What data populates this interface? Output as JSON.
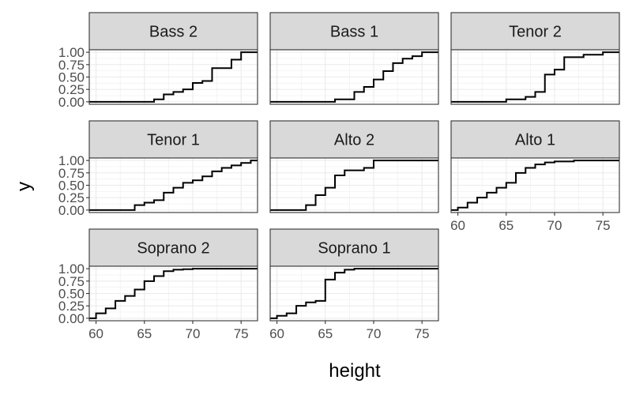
{
  "chart_data": {
    "type": "line",
    "subtype": "step-ecdf",
    "xlabel": "height",
    "ylabel": "y",
    "xlim": [
      59.3,
      76.7
    ],
    "ylim": [
      -0.05,
      1.05
    ],
    "x_ticks": [
      "60",
      "65",
      "70",
      "75"
    ],
    "x_tick_values": [
      60,
      65,
      70,
      75
    ],
    "y_ticks": [
      "0.00",
      "0.25",
      "0.50",
      "0.75",
      "1.00"
    ],
    "y_tick_values": [
      0,
      0.25,
      0.5,
      0.75,
      1
    ],
    "grid": true,
    "theme": "bw",
    "panels": [
      {
        "name": "Bass 2",
        "x": [
          59.3,
          66,
          67,
          68,
          69,
          70,
          71,
          72,
          74,
          75,
          76.7
        ],
        "y": [
          0,
          0.05,
          0.15,
          0.2,
          0.25,
          0.38,
          0.42,
          0.68,
          0.85,
          1.0,
          1.0
        ]
      },
      {
        "name": "Bass 1",
        "x": [
          59.3,
          66,
          68,
          69,
          70,
          71,
          72,
          73,
          74,
          75,
          76.7
        ],
        "y": [
          0,
          0.05,
          0.2,
          0.3,
          0.45,
          0.62,
          0.78,
          0.87,
          0.92,
          1.0,
          1.0
        ]
      },
      {
        "name": "Tenor 2",
        "x": [
          59.3,
          65,
          67,
          68,
          69,
          70,
          71,
          73,
          75,
          76.7
        ],
        "y": [
          0,
          0.05,
          0.1,
          0.2,
          0.55,
          0.65,
          0.9,
          0.95,
          1.0,
          1.0
        ]
      },
      {
        "name": "Tenor 1",
        "x": [
          59.3,
          64,
          65,
          66,
          67,
          68,
          69,
          70,
          71,
          72,
          73,
          74,
          75,
          76,
          76.7
        ],
        "y": [
          0,
          0.1,
          0.15,
          0.2,
          0.35,
          0.45,
          0.55,
          0.6,
          0.68,
          0.78,
          0.85,
          0.9,
          0.95,
          1.0,
          1.0
        ]
      },
      {
        "name": "Alto 2",
        "x": [
          59.3,
          63,
          64,
          65,
          66,
          67,
          69,
          70,
          76.7
        ],
        "y": [
          0,
          0.1,
          0.3,
          0.45,
          0.7,
          0.8,
          0.85,
          1.0,
          1.0
        ]
      },
      {
        "name": "Alto 1",
        "x": [
          59.3,
          60,
          61,
          62,
          63,
          64,
          65,
          66,
          67,
          68,
          69,
          70,
          72,
          76.7
        ],
        "y": [
          0,
          0.05,
          0.15,
          0.25,
          0.35,
          0.45,
          0.55,
          0.75,
          0.85,
          0.92,
          0.96,
          0.98,
          1.0,
          1.0
        ]
      },
      {
        "name": "Soprano 2",
        "x": [
          59.3,
          60,
          61,
          62,
          63,
          64,
          65,
          66,
          67,
          68,
          69,
          70,
          76.7
        ],
        "y": [
          0,
          0.1,
          0.2,
          0.35,
          0.45,
          0.58,
          0.75,
          0.85,
          0.95,
          0.98,
          0.99,
          1.0,
          1.0
        ]
      },
      {
        "name": "Soprano 1",
        "x": [
          59.3,
          60,
          61,
          62,
          63,
          64,
          65,
          66,
          67,
          68,
          76.7
        ],
        "y": [
          0,
          0.05,
          0.1,
          0.25,
          0.32,
          0.35,
          0.78,
          0.92,
          0.98,
          1.0,
          1.0
        ]
      }
    ]
  }
}
